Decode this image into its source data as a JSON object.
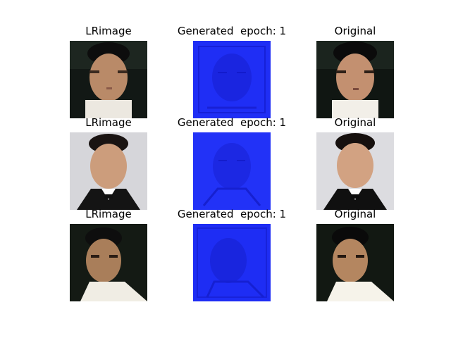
{
  "window": {
    "background": "#ffffff"
  },
  "grid": {
    "columns": [
      "LRimage",
      "Generated  epoch: 1",
      "Original"
    ],
    "rows": [
      {
        "lr_title": "LRimage",
        "gen_title": "Generated  epoch: 1",
        "orig_title": "Original",
        "lr_image": "face-portrait-dark-background",
        "gen_image": "blue-generated-noise",
        "orig_image": "face-portrait-dark-background"
      },
      {
        "lr_title": "LRimage",
        "gen_title": "Generated  epoch: 1",
        "orig_title": "Original",
        "lr_image": "face-portrait-tuxedo-light-background",
        "gen_image": "blue-generated-noise",
        "orig_image": "face-portrait-tuxedo-light-background"
      },
      {
        "lr_title": "LRimage",
        "gen_title": "Generated  epoch: 1",
        "orig_title": "Original",
        "lr_image": "face-portrait-white-shirt-dark-background",
        "gen_image": "blue-generated-noise",
        "orig_image": "face-portrait-white-shirt-dark-background"
      }
    ]
  },
  "colors": {
    "generated_blue": "#1f2ef5",
    "generated_blue_dark": "#1620d8",
    "dark_background": "#141a16",
    "light_background": "#d8d8dc",
    "skin": "#c89a78",
    "white_shirt": "#f0ede6",
    "black_suit": "#151515"
  }
}
